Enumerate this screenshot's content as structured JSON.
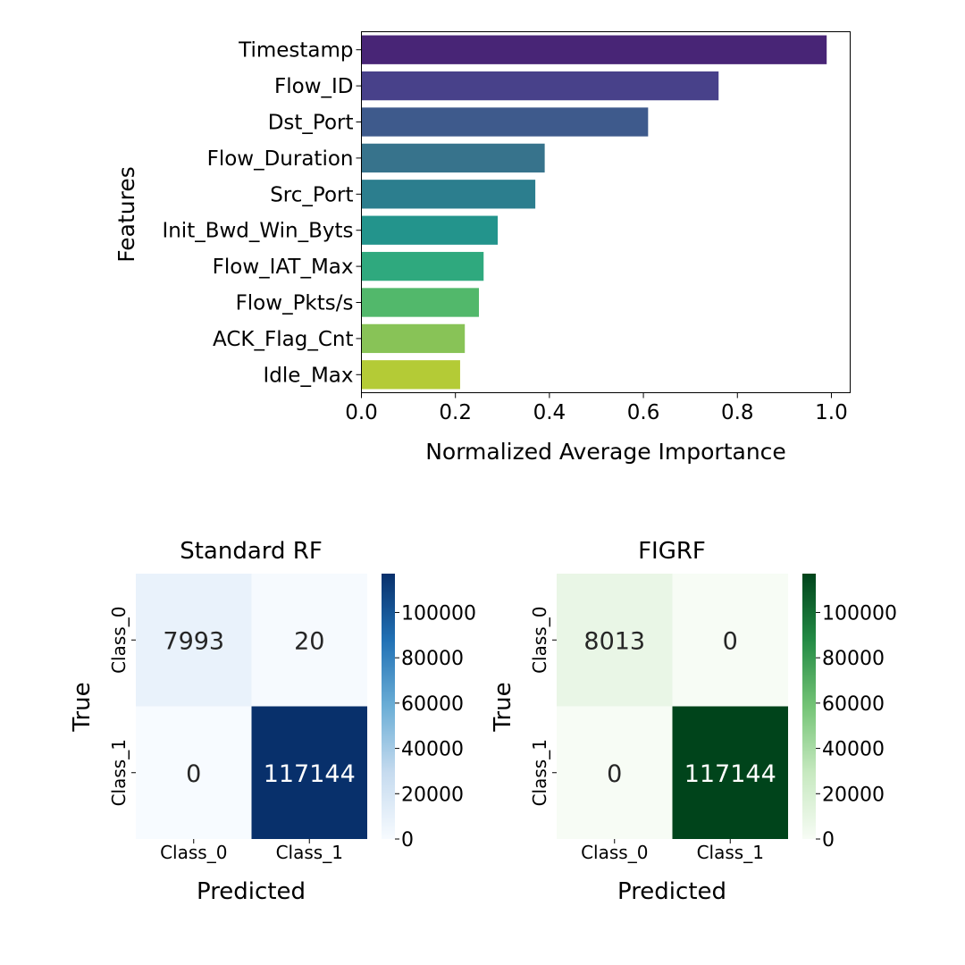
{
  "chart_data": [
    {
      "type": "bar",
      "orientation": "horizontal",
      "title": "",
      "xlabel": "Normalized Average Importance",
      "ylabel": "Features",
      "xlim": [
        0.0,
        1.04
      ],
      "x_ticks": [
        "0.0",
        "0.2",
        "0.4",
        "0.6",
        "0.8",
        "1.0"
      ],
      "categories": [
        "Timestamp",
        "Flow_ID",
        "Dst_Port",
        "Flow_Duration",
        "Src_Port",
        "Init_Bwd_Win_Byts",
        "Flow_IAT_Max",
        "Flow_Pkts/s",
        "ACK_Flag_Cnt",
        "Idle_Max"
      ],
      "values": [
        0.99,
        0.76,
        0.61,
        0.39,
        0.37,
        0.29,
        0.26,
        0.25,
        0.22,
        0.21
      ],
      "colors": [
        "#482576",
        "#48418a",
        "#3e5a8c",
        "#37738c",
        "#2c7e8e",
        "#23948c",
        "#2fa97e",
        "#52b86b",
        "#88c357",
        "#b4cb36"
      ]
    },
    {
      "type": "heatmap",
      "title": "Standard RF",
      "xlabel": "Predicted",
      "ylabel": "True",
      "x_categories": [
        "Class_0",
        "Class_1"
      ],
      "y_categories": [
        "Class_0",
        "Class_1"
      ],
      "cells": [
        [
          7993,
          20
        ],
        [
          0,
          117144
        ]
      ],
      "cell_labels": [
        [
          "7993",
          "20"
        ],
        [
          "0",
          "117144"
        ]
      ],
      "colormap": "Blues",
      "vmin": 0,
      "vmax": 117144,
      "colorbar_ticks": [
        "0",
        "20000",
        "40000",
        "60000",
        "80000",
        "100000"
      ],
      "colorbar_tick_values": [
        0,
        20000,
        40000,
        60000,
        80000,
        100000
      ],
      "cell_colors": [
        [
          "#e9f2fb",
          "#f6fafe"
        ],
        [
          "#f7fbff",
          "#08306b"
        ]
      ],
      "text_colors": [
        [
          "#262626",
          "#262626"
        ],
        [
          "#262626",
          "#ffffff"
        ]
      ]
    },
    {
      "type": "heatmap",
      "title": "FIGRF",
      "xlabel": "Predicted",
      "ylabel": "True",
      "x_categories": [
        "Class_0",
        "Class_1"
      ],
      "y_categories": [
        "Class_0",
        "Class_1"
      ],
      "cells": [
        [
          8013,
          0
        ],
        [
          0,
          117144
        ]
      ],
      "cell_labels": [
        [
          "8013",
          "0"
        ],
        [
          "0",
          "117144"
        ]
      ],
      "colormap": "Greens",
      "vmin": 0,
      "vmax": 117144,
      "colorbar_ticks": [
        "0",
        "20000",
        "40000",
        "60000",
        "80000",
        "100000"
      ],
      "colorbar_tick_values": [
        0,
        20000,
        40000,
        60000,
        80000,
        100000
      ],
      "cell_colors": [
        [
          "#e9f6e6",
          "#f7fcf5"
        ],
        [
          "#f7fcf5",
          "#00441b"
        ]
      ],
      "text_colors": [
        [
          "#262626",
          "#262626"
        ],
        [
          "#262626",
          "#ffffff"
        ]
      ]
    }
  ]
}
